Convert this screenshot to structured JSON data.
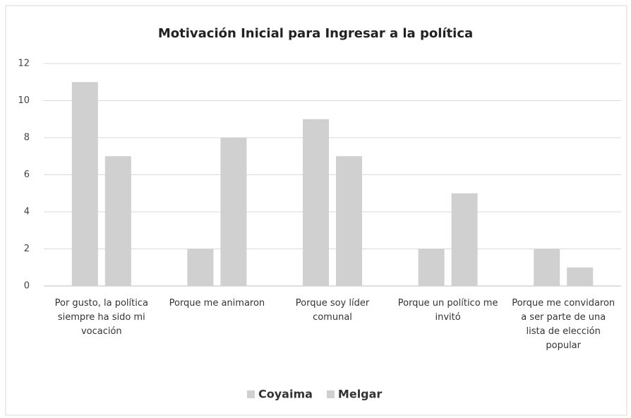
{
  "chart_data": {
    "type": "bar",
    "title": "Motivación Inicial para Ingresar a la política",
    "categories": [
      "Por gusto, la política siempre ha sido mi vocación",
      "Porque me animaron",
      "Porque soy líder comunal",
      "Porque un político me invitó",
      "Porque me convidaron a ser parte de una lista de elección popular"
    ],
    "series": [
      {
        "name": "Coyaima",
        "color": "#d0d0d0",
        "values": [
          11,
          2,
          9,
          2,
          2
        ]
      },
      {
        "name": "Melgar",
        "color": "#d0d0d0",
        "values": [
          7,
          8,
          7,
          5,
          1
        ]
      }
    ],
    "ylim": [
      0,
      12
    ],
    "yticks": [
      0,
      2,
      4,
      6,
      8,
      10,
      12
    ],
    "grid": true,
    "legend": "bottom"
  }
}
